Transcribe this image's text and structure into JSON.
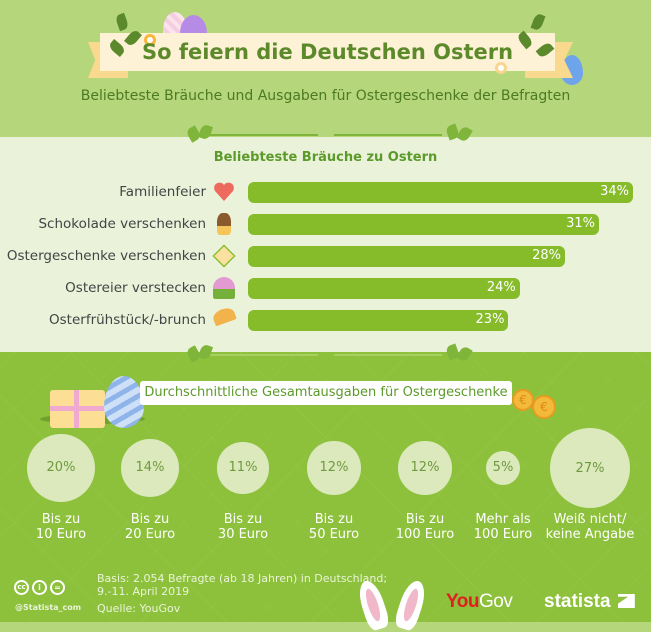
{
  "header": {
    "title": "So feiern die Deutschen Ostern",
    "subtitle": "Beliebteste Bräuche und Ausgaben für Ostergeschenke der Befragten"
  },
  "colors": {
    "bar": "#86bb2a",
    "title": "#5c8a2a",
    "circle": "#dbe9bc",
    "youGov_red": "#e02020"
  },
  "chart_data": [
    {
      "type": "bar",
      "orientation": "horizontal",
      "title": "Beliebteste Bräuche zu Ostern",
      "categories": [
        "Familienfeier",
        "Schokolade verschenken",
        "Ostergeschenke verschenken",
        "Ostereier verstecken",
        "Osterfrühstück/-brunch"
      ],
      "icons": [
        "heart-icon",
        "chocolate-bunny-icon",
        "gift-icon",
        "egg-in-grass-icon",
        "croissant-icon"
      ],
      "values": [
        34,
        31,
        28,
        24,
        23
      ],
      "labels": [
        "34%",
        "31%",
        "28%",
        "24%",
        "23%"
      ],
      "unit": "%",
      "xlim": [
        0,
        34
      ]
    },
    {
      "type": "bubble",
      "title": "Durchschnittliche Gesamtausgaben für Ostergeschenke",
      "categories": [
        "Bis zu 10 Euro",
        "Bis zu 20 Euro",
        "Bis zu 30 Euro",
        "Bis zu 50 Euro",
        "Bis zu 100 Euro",
        "Mehr als 100 Euro",
        "Weiß nicht/ keine Angabe"
      ],
      "label_lines": [
        [
          "Bis zu",
          "10 Euro"
        ],
        [
          "Bis zu",
          "20 Euro"
        ],
        [
          "Bis zu",
          "30 Euro"
        ],
        [
          "Bis zu",
          "50 Euro"
        ],
        [
          "Bis zu",
          "100 Euro"
        ],
        [
          "Mehr als",
          "100 Euro"
        ],
        [
          "Weiß nicht/",
          "keine Angabe"
        ]
      ],
      "values": [
        20,
        14,
        11,
        12,
        12,
        5,
        27
      ],
      "labels": [
        "20%",
        "14%",
        "11%",
        "12%",
        "12%",
        "5%",
        "27%"
      ],
      "unit": "%"
    }
  ],
  "footer": {
    "basis_line1": "Basis: 2.054 Befragte (ab 18 Jahren) in Deutschland;",
    "basis_line2": "9.-11. April 2019",
    "source": "Quelle: YouGov",
    "handle": "@Statista_com",
    "license_icons": [
      "cc-icon",
      "by-icon",
      "nd-icon"
    ],
    "logo_yougov_you": "You",
    "logo_yougov_gov": "Gov",
    "logo_statista": "statista"
  }
}
